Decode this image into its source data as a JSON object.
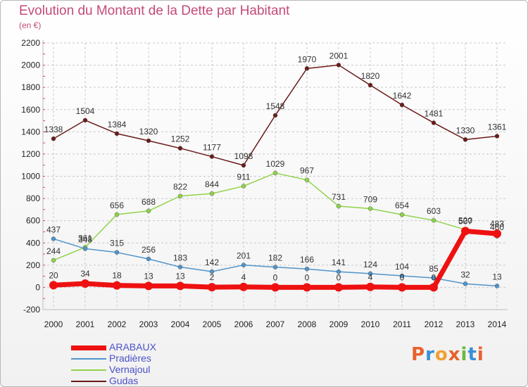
{
  "title": "Evolution du Montant de la Dette par Habitant",
  "unit_label": "(en €)",
  "logo_text": "Proxiti",
  "logo_colors": [
    "#e8612c",
    "#3a8fd6",
    "#f0a030",
    "#e8612c",
    "#6cb83c",
    "#3a8fd6",
    "#e8612c"
  ],
  "chart_data": {
    "type": "line",
    "x": [
      "2000",
      "2001",
      "2002",
      "2003",
      "2004",
      "2005",
      "2006",
      "2007",
      "2008",
      "2009",
      "2010",
      "2011",
      "2012",
      "2013",
      "2014"
    ],
    "ylim": [
      -200,
      2200
    ],
    "yticks": [
      -200,
      0,
      200,
      400,
      600,
      800,
      1000,
      1200,
      1400,
      1600,
      1800,
      2000,
      2200
    ],
    "grid": true,
    "legend_position": "bottom-left",
    "series": [
      {
        "name": "Gudas",
        "color": "#6b1a1a",
        "values": [
          1338,
          1504,
          1384,
          1320,
          1252,
          1177,
          1098,
          1548,
          1970,
          2001,
          1820,
          1642,
          1481,
          1330,
          1361
        ]
      },
      {
        "name": "Vernajoul",
        "color": "#8fd44a",
        "values": [
          244,
          361,
          656,
          688,
          822,
          844,
          911,
          1029,
          967,
          731,
          709,
          654,
          603,
          520,
          460
        ]
      },
      {
        "name": "Pradières",
        "color": "#4f94cc",
        "values": [
          437,
          348,
          315,
          256,
          183,
          142,
          201,
          182,
          166,
          141,
          124,
          104,
          85,
          32,
          13
        ]
      },
      {
        "name": "ARABAUX",
        "color": "#ee1111",
        "values": [
          20,
          34,
          18,
          13,
          13,
          2,
          4,
          0,
          0,
          0,
          4,
          0,
          0,
          507,
          483
        ]
      }
    ]
  },
  "legend": [
    {
      "name": "ARABAUX",
      "color": "#ee1111"
    },
    {
      "name": "Pradières",
      "color": "#4f94cc"
    },
    {
      "name": "Vernajoul",
      "color": "#8fd44a"
    },
    {
      "name": "Gudas",
      "color": "#6b1a1a"
    }
  ]
}
